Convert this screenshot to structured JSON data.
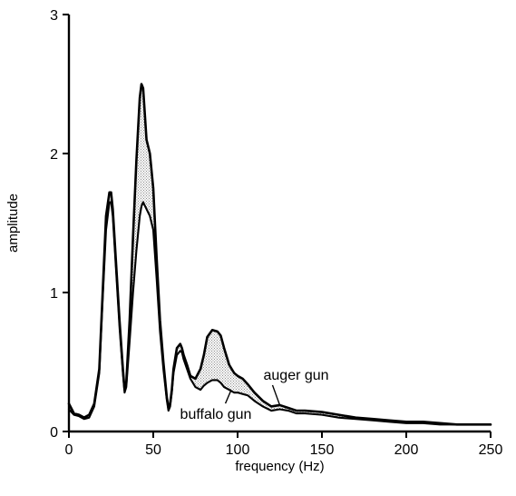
{
  "chart_data": {
    "type": "line",
    "title": "",
    "xlabel": "frequency (Hz)",
    "ylabel": "amplitude",
    "xlim": [
      0,
      250
    ],
    "ylim": [
      0,
      3
    ],
    "xticks": [
      0,
      50,
      100,
      150,
      200,
      250
    ],
    "yticks": [
      0,
      1,
      2,
      3
    ],
    "grid": false,
    "legend": "none",
    "shaded_difference": true,
    "shade_color": "#bdbdbd",
    "line_color": "#000000",
    "series": [
      {
        "name": "auger gun",
        "x": [
          0,
          3,
          6,
          9,
          12,
          15,
          18,
          20,
          22,
          24,
          25,
          26,
          28,
          30,
          32,
          33,
          34,
          36,
          38,
          40,
          42,
          43,
          44,
          46,
          48,
          50,
          52,
          54,
          56,
          58,
          59,
          60,
          61,
          62,
          64,
          66,
          67,
          68,
          70,
          72,
          75,
          78,
          80,
          82,
          85,
          88,
          90,
          92,
          95,
          98,
          100,
          103,
          106,
          110,
          115,
          120,
          125,
          130,
          135,
          140,
          150,
          160,
          170,
          180,
          190,
          200,
          210,
          220,
          230,
          240,
          250
        ],
        "y": [
          0.2,
          0.13,
          0.12,
          0.1,
          0.12,
          0.2,
          0.45,
          1.0,
          1.55,
          1.72,
          1.72,
          1.6,
          1.2,
          0.8,
          0.45,
          0.3,
          0.35,
          0.8,
          1.4,
          1.95,
          2.4,
          2.5,
          2.47,
          2.1,
          2.0,
          1.75,
          1.25,
          0.8,
          0.5,
          0.25,
          0.17,
          0.2,
          0.3,
          0.45,
          0.6,
          0.63,
          0.6,
          0.55,
          0.48,
          0.4,
          0.38,
          0.45,
          0.55,
          0.68,
          0.73,
          0.72,
          0.69,
          0.6,
          0.48,
          0.42,
          0.4,
          0.38,
          0.34,
          0.28,
          0.22,
          0.18,
          0.19,
          0.17,
          0.15,
          0.15,
          0.14,
          0.12,
          0.1,
          0.09,
          0.08,
          0.07,
          0.07,
          0.06,
          0.05,
          0.05,
          0.05
        ]
      },
      {
        "name": "buffalo gun",
        "x": [
          0,
          3,
          6,
          9,
          12,
          15,
          18,
          20,
          22,
          24,
          25,
          26,
          28,
          30,
          32,
          33,
          34,
          36,
          38,
          40,
          42,
          43,
          44,
          46,
          48,
          50,
          52,
          54,
          56,
          58,
          59,
          60,
          61,
          62,
          64,
          66,
          67,
          68,
          70,
          72,
          75,
          78,
          80,
          82,
          85,
          88,
          90,
          92,
          95,
          98,
          100,
          103,
          106,
          110,
          115,
          120,
          125,
          130,
          135,
          140,
          150,
          160,
          170,
          180,
          190,
          200,
          210,
          220,
          230,
          240,
          250
        ],
        "y": [
          0.16,
          0.12,
          0.11,
          0.09,
          0.1,
          0.18,
          0.42,
          0.95,
          1.45,
          1.65,
          1.65,
          1.55,
          1.15,
          0.75,
          0.42,
          0.28,
          0.32,
          0.65,
          1.0,
          1.3,
          1.55,
          1.62,
          1.65,
          1.6,
          1.55,
          1.45,
          1.1,
          0.72,
          0.45,
          0.23,
          0.15,
          0.18,
          0.28,
          0.42,
          0.55,
          0.58,
          0.57,
          0.52,
          0.45,
          0.38,
          0.32,
          0.3,
          0.33,
          0.35,
          0.37,
          0.37,
          0.35,
          0.32,
          0.3,
          0.28,
          0.28,
          0.27,
          0.26,
          0.22,
          0.18,
          0.15,
          0.16,
          0.15,
          0.13,
          0.13,
          0.12,
          0.1,
          0.09,
          0.08,
          0.07,
          0.06,
          0.06,
          0.05,
          0.05,
          0.05,
          0.05
        ]
      }
    ],
    "annotations": [
      {
        "text": "auger gun",
        "series": "auger gun",
        "at_x": 125
      },
      {
        "text": "buffalo gun",
        "series": "buffalo gun",
        "at_x": 96
      }
    ]
  }
}
